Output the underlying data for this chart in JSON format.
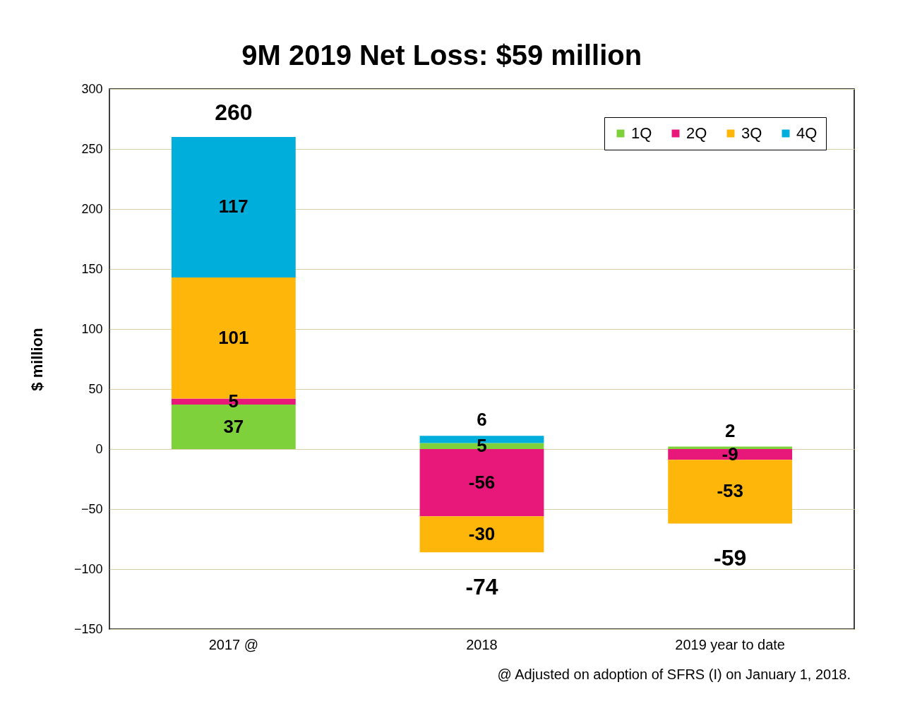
{
  "chart_data": {
    "type": "bar",
    "title": "9M 2019 Net Loss: $59 million",
    "ylabel": "$ million",
    "categories": [
      "2017 @",
      "2018",
      "2019 year to date"
    ],
    "series": [
      {
        "name": "1Q",
        "color": "#7fd13b",
        "values": [
          37,
          5,
          2
        ]
      },
      {
        "name": "2Q",
        "color": "#e8177a",
        "values": [
          5,
          -56,
          -9
        ]
      },
      {
        "name": "3Q",
        "color": "#ffb60a",
        "values": [
          101,
          -30,
          -53
        ]
      },
      {
        "name": "4Q",
        "color": "#00aedb",
        "values": [
          117,
          6,
          null
        ]
      }
    ],
    "stacked": true,
    "totals": [
      "260",
      "-74",
      "-59"
    ],
    "data_labels": true,
    "ylim": [
      -150,
      300
    ],
    "yticks": [
      -150,
      -100,
      -50,
      0,
      50,
      100,
      150,
      200,
      250,
      300
    ],
    "grid": "y",
    "legend": "top right",
    "annotations": [
      "@ Adjusted on adoption of SFRS (I) on January 1, 2018."
    ]
  }
}
